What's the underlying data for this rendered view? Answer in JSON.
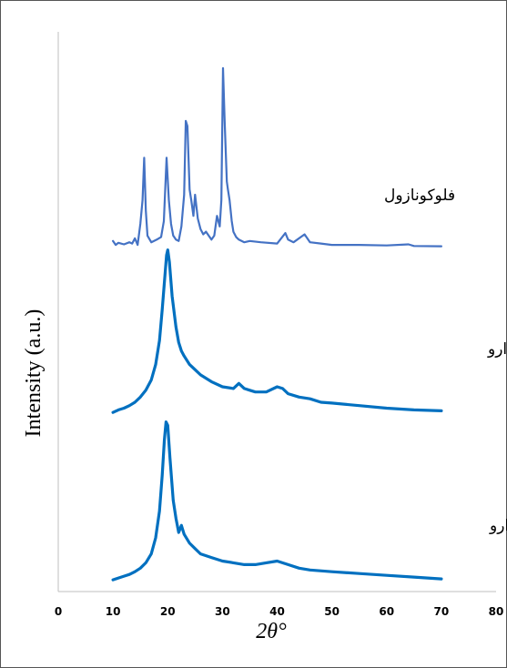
{
  "chart_data": {
    "type": "line",
    "xlabel": "2θ°",
    "ylabel": "Intensity (a.u.)",
    "xlim": [
      0,
      80
    ],
    "xticks": [
      0,
      10,
      20,
      30,
      40,
      50,
      60,
      70,
      80
    ],
    "grid": false,
    "legend": "none",
    "series": [
      {
        "key": "fluconazole",
        "color": "#4472C4",
        "x": [
          10,
          10.5,
          11,
          12,
          13,
          13.5,
          14,
          14.5,
          15,
          15.4,
          15.7,
          16,
          16.3,
          17,
          18,
          18.8,
          19.3,
          19.8,
          20.2,
          20.6,
          21,
          21.5,
          22,
          22.5,
          23,
          23.3,
          23.6,
          24,
          24.3,
          24.7,
          25,
          25.5,
          26,
          26.5,
          27,
          28,
          28.5,
          29,
          29.5,
          29.8,
          30.1,
          30.4,
          30.8,
          31,
          31.3,
          31.7,
          32,
          32.5,
          33,
          34,
          35,
          37,
          40,
          41.5,
          42,
          43,
          45,
          46,
          48,
          50,
          55,
          60,
          64,
          65,
          70
        ],
        "y": [
          2.5,
          1.0,
          1.8,
          1.2,
          2.0,
          1.5,
          3.5,
          1.0,
          9.0,
          18.0,
          34.0,
          14.0,
          4.5,
          2.0,
          3.0,
          4.0,
          10.0,
          34.0,
          18.0,
          9.0,
          4.5,
          3.0,
          2.5,
          8.0,
          20.0,
          48.0,
          46.0,
          22.0,
          18.0,
          12.0,
          20.0,
          11.0,
          7.0,
          5.0,
          6.0,
          3.0,
          4.5,
          12.0,
          8.0,
          18.0,
          68.0,
          48.0,
          25.0,
          22.0,
          18.0,
          10.0,
          6.0,
          4.0,
          3.0,
          2.0,
          2.5,
          2.0,
          1.5,
          5.5,
          3.0,
          2.0,
          5.0,
          2.0,
          1.5,
          1.0,
          1.0,
          0.8,
          1.2,
          0.6,
          0.5
        ]
      },
      {
        "key": "pva_film_with_drug",
        "color": "#0070C0",
        "x": [
          10,
          11,
          12,
          13,
          14,
          15,
          16,
          17,
          17.8,
          18.5,
          19,
          19.5,
          19.8,
          20,
          20.3,
          20.8,
          21.5,
          22,
          22.5,
          23,
          24,
          25,
          26,
          28,
          30,
          32,
          33,
          34,
          35,
          36,
          38,
          40,
          41,
          42,
          44,
          46,
          48,
          50,
          55,
          60,
          65,
          70
        ],
        "y": [
          2.0,
          3.5,
          4.5,
          6.0,
          8.0,
          11.0,
          15.0,
          21.0,
          30.0,
          44.0,
          62.0,
          82.0,
          94.0,
          97.0,
          90.0,
          70.0,
          52.0,
          43.0,
          38.0,
          35.0,
          30.0,
          27.0,
          24.0,
          20.0,
          17.0,
          16.0,
          19.0,
          16.0,
          15.0,
          14.0,
          14.0,
          17.0,
          16.0,
          13.0,
          11.0,
          10.0,
          8.0,
          7.5,
          6.0,
          4.5,
          3.5,
          3.0
        ]
      },
      {
        "key": "pva_film_without_drug",
        "color": "#0070C0",
        "x": [
          10,
          11,
          12,
          13,
          14,
          15,
          16,
          17,
          17.8,
          18.5,
          19,
          19.4,
          19.7,
          20,
          20.4,
          21,
          21.5,
          22,
          22.5,
          23,
          24,
          25,
          26,
          28,
          30,
          32,
          34,
          36,
          38,
          40,
          42,
          44,
          46,
          50,
          55,
          60,
          65,
          70
        ],
        "y": [
          1.5,
          2.5,
          3.5,
          4.5,
          6.0,
          8.0,
          11.0,
          16.0,
          25.0,
          40.0,
          60.0,
          80.0,
          90.0,
          88.0,
          70.0,
          46.0,
          36.0,
          28.0,
          32.0,
          27.0,
          22.0,
          19.0,
          16.0,
          14.0,
          12.0,
          11.0,
          10.0,
          10.0,
          11.0,
          12.0,
          10.0,
          8.0,
          7.0,
          6.0,
          5.0,
          4.0,
          3.0,
          2.0
        ]
      }
    ],
    "annotations": [
      "فلوکونازول",
      "فیلم پلی وینیل الکل حاوی دارو",
      "فیلم پلی وینیل الکل بدون دارو"
    ]
  }
}
